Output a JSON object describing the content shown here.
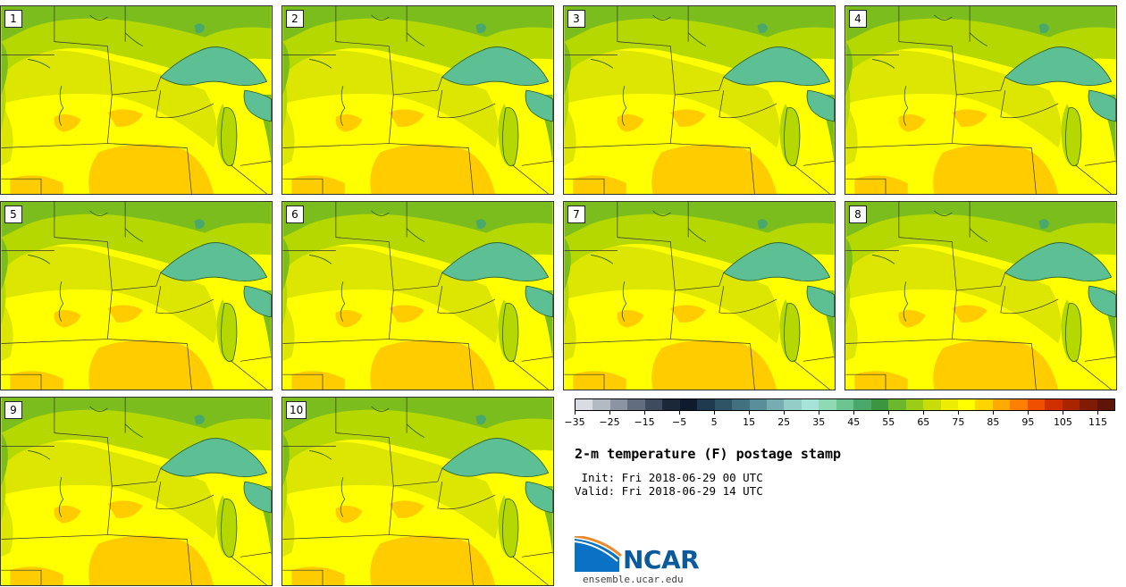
{
  "stamps": [
    {
      "label": "1"
    },
    {
      "label": "2"
    },
    {
      "label": "3"
    },
    {
      "label": "4"
    },
    {
      "label": "5"
    },
    {
      "label": "6"
    },
    {
      "label": "7"
    },
    {
      "label": "8"
    },
    {
      "label": "9"
    },
    {
      "label": "10"
    }
  ],
  "colorbar": {
    "ticks": [
      "−35",
      "−25",
      "−15",
      "−5",
      "5",
      "15",
      "25",
      "35",
      "45",
      "55",
      "65",
      "75",
      "85",
      "95",
      "105",
      "115"
    ],
    "min": -35,
    "max": 120,
    "colors": [
      "#d9dde3",
      "#b3bac4",
      "#8a94a3",
      "#626e80",
      "#3e4a5e",
      "#1c273a",
      "#0e1a2e",
      "#1f3a4e",
      "#2f5466",
      "#41707f",
      "#5a8f99",
      "#77adb2",
      "#94ccc8",
      "#a8e3d8",
      "#8fd9b5",
      "#6cc590",
      "#4aa96a",
      "#3c9640",
      "#6cb82c",
      "#9ccd15",
      "#c8dc0a",
      "#ecec05",
      "#ffff00",
      "#ffd500",
      "#ffaa00",
      "#ff7f00",
      "#f04f00",
      "#d02f00",
      "#a82500",
      "#801c05",
      "#5e1508"
    ]
  },
  "title": "2-m temperature (F) postage stamp",
  "init": " Init: Fri 2018-06-29 00 UTC",
  "valid": "Valid: Fri 2018-06-29 14 UTC",
  "logo": {
    "text": "NCAR",
    "blue": "#0a5a9c",
    "orange": "#e98a2e"
  },
  "website": "ensemble.ucar.edu",
  "palette": {
    "dark_green": "#4aa96a",
    "green": "#7cbd1e",
    "yellow_green": "#b4d800",
    "light_yellow_green": "#dce600",
    "yellow": "#ffff00",
    "orange_yellow": "#ffcc00",
    "lake": "#5cc094"
  }
}
